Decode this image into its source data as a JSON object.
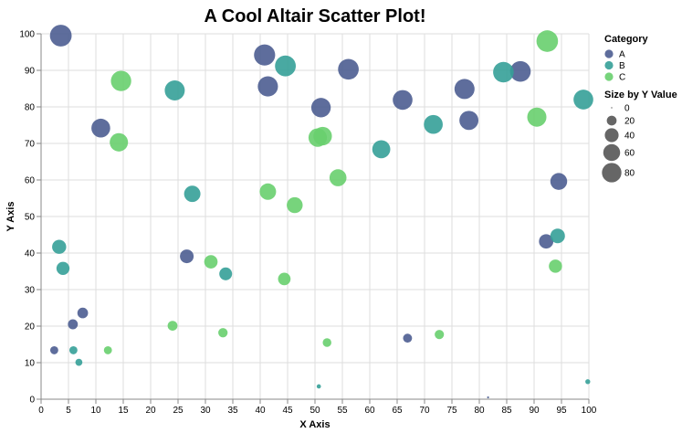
{
  "chart_data": {
    "type": "scatter",
    "title": "A Cool Altair Scatter Plot!",
    "xlabel": "X Axis",
    "ylabel": "Y Axis",
    "xlim": [
      0,
      100
    ],
    "ylim": [
      0,
      100
    ],
    "x_ticks": [
      0,
      5,
      10,
      15,
      20,
      25,
      30,
      35,
      40,
      45,
      50,
      55,
      60,
      65,
      70,
      75,
      80,
      85,
      90,
      95,
      100
    ],
    "y_ticks": [
      0,
      10,
      20,
      30,
      40,
      50,
      60,
      70,
      80,
      90,
      100
    ],
    "grid": true,
    "legend_position": "right",
    "color_legend": {
      "title": "Category",
      "entries": [
        {
          "label": "A",
          "color": "#4c5d91"
        },
        {
          "label": "B",
          "color": "#35a098"
        },
        {
          "label": "C",
          "color": "#68cf6e"
        }
      ]
    },
    "size_legend": {
      "title": "Size by Y Value",
      "values": [
        0,
        20,
        40,
        60,
        80
      ]
    },
    "series": [
      {
        "name": "A",
        "color": "#4c5d91",
        "points": [
          {
            "x": 3.6,
            "y": 99.5
          },
          {
            "x": 40.8,
            "y": 94.2
          },
          {
            "x": 56.1,
            "y": 90.3
          },
          {
            "x": 87.5,
            "y": 89.7
          },
          {
            "x": 41.4,
            "y": 85.6
          },
          {
            "x": 77.3,
            "y": 84.9
          },
          {
            "x": 66.0,
            "y": 81.9
          },
          {
            "x": 51.1,
            "y": 79.8
          },
          {
            "x": 78.1,
            "y": 76.3
          },
          {
            "x": 10.9,
            "y": 74.2
          },
          {
            "x": 94.5,
            "y": 59.6
          },
          {
            "x": 92.2,
            "y": 43.2
          },
          {
            "x": 26.6,
            "y": 39.1
          },
          {
            "x": 7.6,
            "y": 23.6
          },
          {
            "x": 5.8,
            "y": 20.5
          },
          {
            "x": 2.4,
            "y": 13.4
          },
          {
            "x": 66.9,
            "y": 16.7
          },
          {
            "x": 81.6,
            "y": 0.5
          }
        ]
      },
      {
        "name": "B",
        "color": "#35a098",
        "points": [
          {
            "x": 44.6,
            "y": 91.2
          },
          {
            "x": 84.4,
            "y": 89.5
          },
          {
            "x": 24.4,
            "y": 84.5
          },
          {
            "x": 99.0,
            "y": 82.0
          },
          {
            "x": 71.6,
            "y": 75.2
          },
          {
            "x": 62.1,
            "y": 68.4
          },
          {
            "x": 27.6,
            "y": 56.2
          },
          {
            "x": 94.3,
            "y": 44.7
          },
          {
            "x": 3.3,
            "y": 41.7
          },
          {
            "x": 4.0,
            "y": 35.8
          },
          {
            "x": 33.7,
            "y": 34.3
          },
          {
            "x": 5.9,
            "y": 13.4
          },
          {
            "x": 6.9,
            "y": 10.1
          },
          {
            "x": 50.7,
            "y": 3.5
          },
          {
            "x": 99.8,
            "y": 4.8
          }
        ]
      },
      {
        "name": "C",
        "color": "#68cf6e",
        "points": [
          {
            "x": 92.4,
            "y": 98.0
          },
          {
            "x": 14.6,
            "y": 87.1
          },
          {
            "x": 90.5,
            "y": 77.2
          },
          {
            "x": 50.5,
            "y": 71.6
          },
          {
            "x": 51.4,
            "y": 72.0
          },
          {
            "x": 14.2,
            "y": 70.3
          },
          {
            "x": 54.2,
            "y": 60.6
          },
          {
            "x": 41.4,
            "y": 56.8
          },
          {
            "x": 46.3,
            "y": 53.1
          },
          {
            "x": 31.0,
            "y": 37.6
          },
          {
            "x": 93.9,
            "y": 36.4
          },
          {
            "x": 44.4,
            "y": 32.9
          },
          {
            "x": 24.0,
            "y": 20.1
          },
          {
            "x": 33.2,
            "y": 18.2
          },
          {
            "x": 72.7,
            "y": 17.7
          },
          {
            "x": 52.2,
            "y": 15.5
          },
          {
            "x": 12.2,
            "y": 13.4
          }
        ]
      }
    ]
  }
}
